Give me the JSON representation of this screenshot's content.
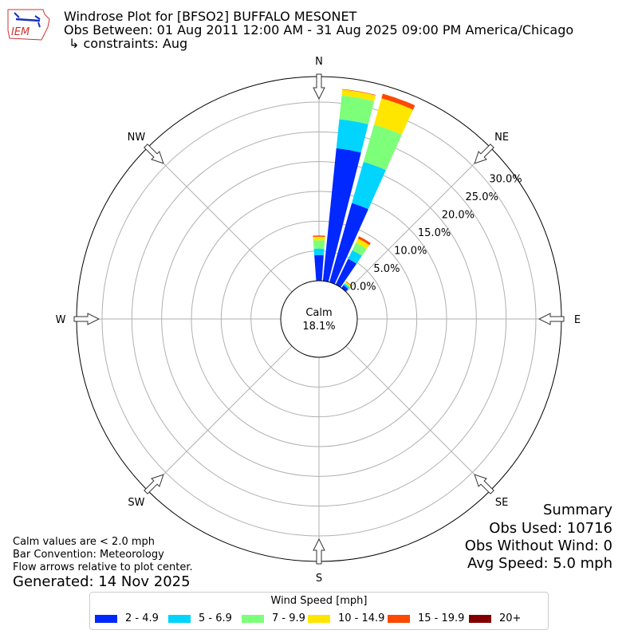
{
  "header": {
    "title": "Windrose Plot for [BFSO2] BUFFALO MESONET",
    "period": "Obs Between: 01 Aug 2011 12:00 AM - 31 Aug 2025 09:00 PM America/Chicago",
    "constraints": "↳ constraints: Aug",
    "logo_text": "IEM"
  },
  "notes": {
    "calm_note": "Calm values are < 2.0 mph",
    "bar_convention": "Bar Convention: Meteorology",
    "flow_arrows": "Flow arrows relative to plot center.",
    "generated": "Generated: 14 Nov 2025"
  },
  "summary": {
    "title": "Summary",
    "obs_used": "Obs Used: 10716",
    "obs_without_wind": "Obs Without Wind: 0",
    "avg_speed": "Avg Speed: 5.0 mph"
  },
  "chart_data": {
    "type": "windrose",
    "calm_label": "Calm",
    "calm_value": "18.1%",
    "compass_labels": [
      "N",
      "NE",
      "E",
      "SE",
      "S",
      "SW",
      "W",
      "NW"
    ],
    "radial_ticks": [
      "0.0%",
      "5.0%",
      "10.0%",
      "15.0%",
      "20.0%",
      "25.0%",
      "30.0%"
    ],
    "radial_tick_values": [
      0,
      5,
      10,
      15,
      20,
      25,
      30
    ],
    "rmax": 34.3,
    "grid": true,
    "legend_title": "Wind Speed [mph]",
    "legend_position": "bottom",
    "directions_deg": [
      0,
      10,
      20,
      30,
      40
    ],
    "series": [
      {
        "name": "2 - 4.9",
        "color": "#0028ff",
        "values": [
          4.3,
          22.4,
          13.8,
          4.8,
          0.6
        ]
      },
      {
        "name": "5 - 6.9",
        "color": "#00d4ff",
        "values": [
          1.1,
          4.9,
          7.2,
          1.6,
          0.3
        ]
      },
      {
        "name": "7 - 9.9",
        "color": "#7dff7a",
        "values": [
          1.4,
          4.0,
          6.5,
          1.4,
          0.2
        ]
      },
      {
        "name": "10 - 14.9",
        "color": "#ffe600",
        "values": [
          0.6,
          1.0,
          4.6,
          0.8,
          0.2
        ]
      },
      {
        "name": "15 - 19.9",
        "color": "#ff4800",
        "values": [
          0.2,
          0.1,
          0.8,
          0.4,
          0.1
        ]
      },
      {
        "name": "20+",
        "color": "#800000",
        "values": [
          0,
          0,
          0,
          0,
          0
        ]
      }
    ]
  }
}
